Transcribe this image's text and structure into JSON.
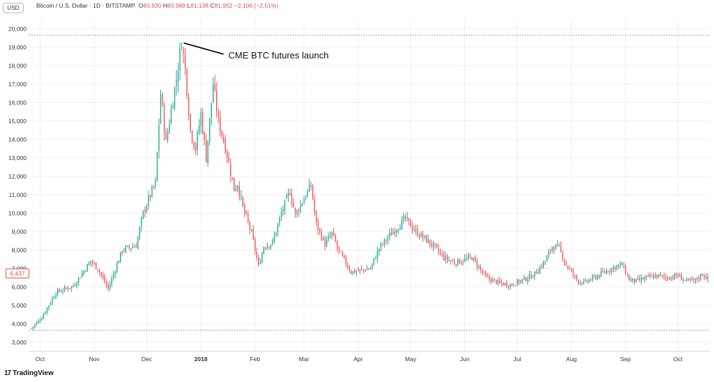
{
  "header": {
    "currency": "USD",
    "symbol_title": "Bitcoin / U.S. Dollar · 1D · BITSTAMP",
    "open_label": "O",
    "open": "83,930",
    "high_label": "H",
    "high": "83,989",
    "low_label": "L",
    "low": "81,138",
    "close_label": "C",
    "close": "81,952",
    "change": "−2,106 (−2.51%)"
  },
  "last_price_tag": "6,437",
  "branding": {
    "logo_glyph": "17",
    "name": "TradingView"
  },
  "colors": {
    "up": "#26a69a",
    "down": "#ef5350",
    "grid": "#eef0f3",
    "axis_text": "#333333",
    "annotation_line": "#000000"
  },
  "chart_data": {
    "type": "candlestick",
    "ylim": [
      2500,
      20500
    ],
    "y_ticks": [
      3000,
      4000,
      5000,
      6000,
      7000,
      8000,
      9000,
      10000,
      11000,
      12000,
      13000,
      14000,
      15000,
      16000,
      17000,
      18000,
      19000,
      20000
    ],
    "y_tick_labels": [
      "3,000",
      "4,000",
      "5,000",
      "6,000",
      "7,000",
      "8,000",
      "9,000",
      "10,000",
      "11,000",
      "12,000",
      "13,000",
      "14,000",
      "15,000",
      "16,000",
      "17,000",
      "18,000",
      "19,000",
      "20,000"
    ],
    "x_ticks": [
      {
        "label": "Oct",
        "index": 5
      },
      {
        "label": "Nov",
        "index": 36
      },
      {
        "label": "Dec",
        "index": 66
      },
      {
        "label": "2018",
        "index": 97
      },
      {
        "label": "Feb",
        "index": 128
      },
      {
        "label": "Mar",
        "index": 156
      },
      {
        "label": "Apr",
        "index": 187
      },
      {
        "label": "May",
        "index": 217
      },
      {
        "label": "Jun",
        "index": 248
      },
      {
        "label": "Jul",
        "index": 278
      },
      {
        "label": "Aug",
        "index": 309
      },
      {
        "label": "Sep",
        "index": 340
      },
      {
        "label": "Oct",
        "index": 370
      }
    ],
    "total_days": 388,
    "x_start_date": "2017-09-26",
    "horizontal_lines": [
      19650,
      3650
    ],
    "key_points": [
      {
        "i": 0,
        "c": 3750
      },
      {
        "i": 6,
        "c": 4350
      },
      {
        "i": 14,
        "c": 5700
      },
      {
        "i": 24,
        "c": 6050
      },
      {
        "i": 34,
        "c": 7400
      },
      {
        "i": 38,
        "c": 7000
      },
      {
        "i": 44,
        "c": 5900
      },
      {
        "i": 52,
        "c": 8000
      },
      {
        "i": 60,
        "c": 8250
      },
      {
        "i": 64,
        "c": 10000
      },
      {
        "i": 68,
        "c": 11000
      },
      {
        "i": 71,
        "c": 11600
      },
      {
        "i": 74,
        "c": 16500
      },
      {
        "i": 77,
        "c": 13800
      },
      {
        "i": 80,
        "c": 15600
      },
      {
        "i": 83,
        "c": 17300
      },
      {
        "i": 86,
        "c": 19300
      },
      {
        "i": 88,
        "c": 17800
      },
      {
        "i": 91,
        "c": 14500
      },
      {
        "i": 94,
        "c": 13500
      },
      {
        "i": 97,
        "c": 15400
      },
      {
        "i": 100,
        "c": 13000
      },
      {
        "i": 104,
        "c": 17000
      },
      {
        "i": 107,
        "c": 15000
      },
      {
        "i": 111,
        "c": 13600
      },
      {
        "i": 116,
        "c": 11300
      },
      {
        "i": 118,
        "c": 11600
      },
      {
        "i": 121,
        "c": 10300
      },
      {
        "i": 126,
        "c": 8900
      },
      {
        "i": 130,
        "c": 7100
      },
      {
        "i": 133,
        "c": 8200
      },
      {
        "i": 138,
        "c": 8400
      },
      {
        "i": 143,
        "c": 10000
      },
      {
        "i": 148,
        "c": 11200
      },
      {
        "i": 151,
        "c": 9900
      },
      {
        "i": 156,
        "c": 10800
      },
      {
        "i": 160,
        "c": 11500
      },
      {
        "i": 163,
        "c": 9400
      },
      {
        "i": 168,
        "c": 8300
      },
      {
        "i": 172,
        "c": 8900
      },
      {
        "i": 176,
        "c": 7900
      },
      {
        "i": 183,
        "c": 6800
      },
      {
        "i": 189,
        "c": 6900
      },
      {
        "i": 194,
        "c": 7000
      },
      {
        "i": 199,
        "c": 8100
      },
      {
        "i": 205,
        "c": 8800
      },
      {
        "i": 210,
        "c": 9300
      },
      {
        "i": 214,
        "c": 9700
      },
      {
        "i": 220,
        "c": 9000
      },
      {
        "i": 228,
        "c": 8400
      },
      {
        "i": 236,
        "c": 7600
      },
      {
        "i": 242,
        "c": 7300
      },
      {
        "i": 252,
        "c": 7600
      },
      {
        "i": 260,
        "c": 6500
      },
      {
        "i": 268,
        "c": 6200
      },
      {
        "i": 274,
        "c": 6100
      },
      {
        "i": 282,
        "c": 6400
      },
      {
        "i": 288,
        "c": 6700
      },
      {
        "i": 294,
        "c": 7400
      },
      {
        "i": 298,
        "c": 8200
      },
      {
        "i": 302,
        "c": 8100
      },
      {
        "i": 306,
        "c": 7200
      },
      {
        "i": 312,
        "c": 6400
      },
      {
        "i": 316,
        "c": 6200
      },
      {
        "i": 322,
        "c": 6500
      },
      {
        "i": 328,
        "c": 6800
      },
      {
        "i": 334,
        "c": 7100
      },
      {
        "i": 338,
        "c": 7200
      },
      {
        "i": 342,
        "c": 6400
      },
      {
        "i": 346,
        "c": 6300
      },
      {
        "i": 352,
        "c": 6500
      },
      {
        "i": 358,
        "c": 6600
      },
      {
        "i": 364,
        "c": 6500
      },
      {
        "i": 370,
        "c": 6600
      },
      {
        "i": 375,
        "c": 6300
      },
      {
        "i": 380,
        "c": 6350
      },
      {
        "i": 384,
        "c": 6700
      },
      {
        "i": 387,
        "c": 6437
      }
    ],
    "annotation": {
      "text": "CME BTC futures launch",
      "i": 86,
      "value": 19300
    }
  }
}
